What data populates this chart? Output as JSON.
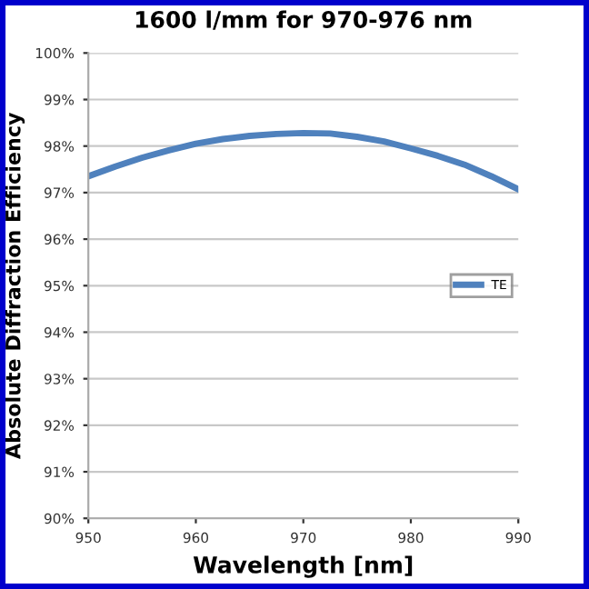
{
  "chart_data": {
    "type": "line",
    "title": "1600 l/mm for 970-976 nm",
    "xlabel": "Wavelength [nm]",
    "ylabel": "Absolute Diffraction Efficiency",
    "x": [
      950,
      952.5,
      955,
      957.5,
      960,
      962.5,
      965,
      967.5,
      970,
      972.5,
      975,
      977.5,
      980,
      982.5,
      985,
      987.5,
      990
    ],
    "series": [
      {
        "name": "TE",
        "color": "#4f81bd",
        "values": [
          97.35,
          97.56,
          97.75,
          97.91,
          98.05,
          98.15,
          98.22,
          98.26,
          98.28,
          98.27,
          98.2,
          98.1,
          97.95,
          97.79,
          97.6,
          97.35,
          97.07
        ]
      }
    ],
    "xlim": [
      950,
      990
    ],
    "xticks": [
      950,
      960,
      970,
      980,
      990
    ],
    "ylim": [
      90,
      100
    ],
    "yticks": [
      {
        "value": 90,
        "label": "90%"
      },
      {
        "value": 91,
        "label": "91%"
      },
      {
        "value": 92,
        "label": "92%"
      },
      {
        "value": 93,
        "label": "93%"
      },
      {
        "value": 94,
        "label": "94%"
      },
      {
        "value": 95,
        "label": "95%"
      },
      {
        "value": 96,
        "label": "96%"
      },
      {
        "value": 97,
        "label": "97%"
      },
      {
        "value": 98,
        "label": "98%"
      },
      {
        "value": 99,
        "label": "99%"
      },
      {
        "value": 100,
        "label": "100%"
      }
    ],
    "grid": "y",
    "legend": "right",
    "marker": "none",
    "line_style": "solid"
  }
}
